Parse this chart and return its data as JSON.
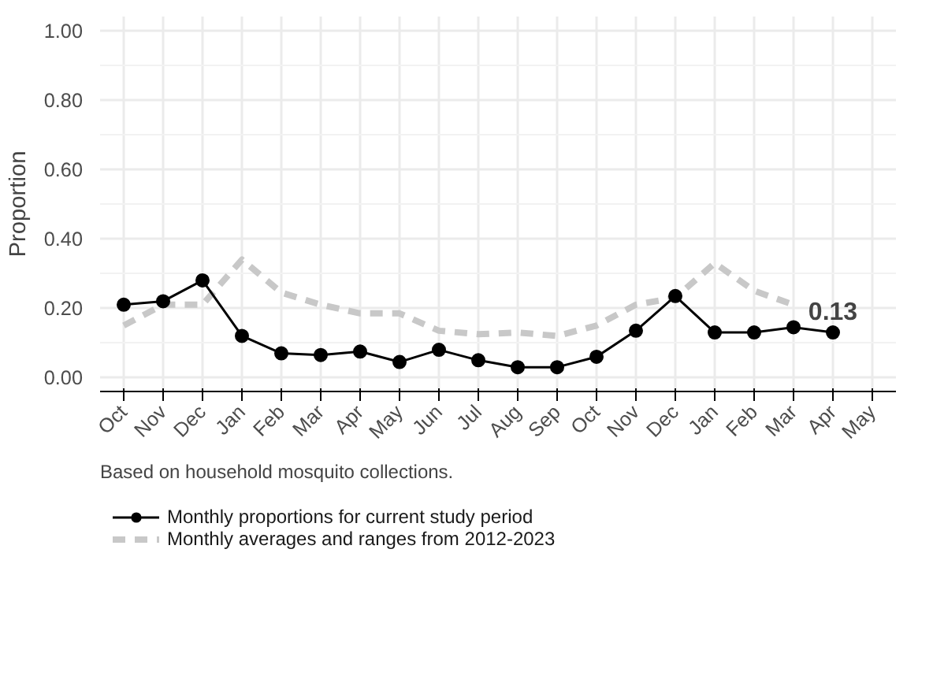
{
  "chart_data": {
    "type": "line",
    "ylabel": "Proportion",
    "categories": [
      "Oct",
      "Nov",
      "Dec",
      "Jan",
      "Feb",
      "Mar",
      "Apr",
      "May",
      "Jun",
      "Jul",
      "Aug",
      "Sep",
      "Oct",
      "Nov",
      "Dec",
      "Jan",
      "Feb",
      "Mar",
      "Apr",
      "May"
    ],
    "series": [
      {
        "name": "Monthly averages and ranges from 2012-2023",
        "color": "#c8c8c8",
        "line_style": "dashed",
        "marker": "none",
        "values": [
          0.15,
          0.21,
          0.21,
          0.34,
          0.245,
          0.21,
          0.185,
          0.185,
          0.135,
          0.125,
          0.13,
          0.12,
          0.15,
          0.21,
          0.23,
          0.33,
          0.25,
          0.21,
          null,
          null
        ]
      },
      {
        "name": "Monthly proportions for current study period",
        "color": "#000000",
        "line_style": "solid",
        "marker": "circle",
        "values": [
          0.21,
          0.22,
          0.28,
          0.12,
          0.07,
          0.065,
          0.075,
          0.045,
          0.08,
          0.05,
          0.03,
          0.03,
          0.06,
          0.135,
          0.235,
          0.13,
          0.13,
          0.145,
          0.13,
          null
        ],
        "value_labels": [
          null,
          null,
          null,
          null,
          null,
          null,
          null,
          null,
          null,
          null,
          null,
          null,
          null,
          null,
          null,
          null,
          null,
          null,
          "0.13",
          null
        ]
      }
    ],
    "ylim": [
      -0.04,
      1.04
    ],
    "yticks": [
      {
        "value": 0,
        "label": "0.00"
      },
      {
        "value": 0.2,
        "label": "0.20"
      },
      {
        "value": 0.4,
        "label": "0.40"
      },
      {
        "value": 0.6,
        "label": "0.60"
      },
      {
        "value": 0.8,
        "label": "0.80"
      },
      {
        "value": 1,
        "label": "1.00"
      }
    ],
    "grid": true,
    "legend": "bottom",
    "annotations": [
      "Based on household mosquito collections."
    ]
  }
}
